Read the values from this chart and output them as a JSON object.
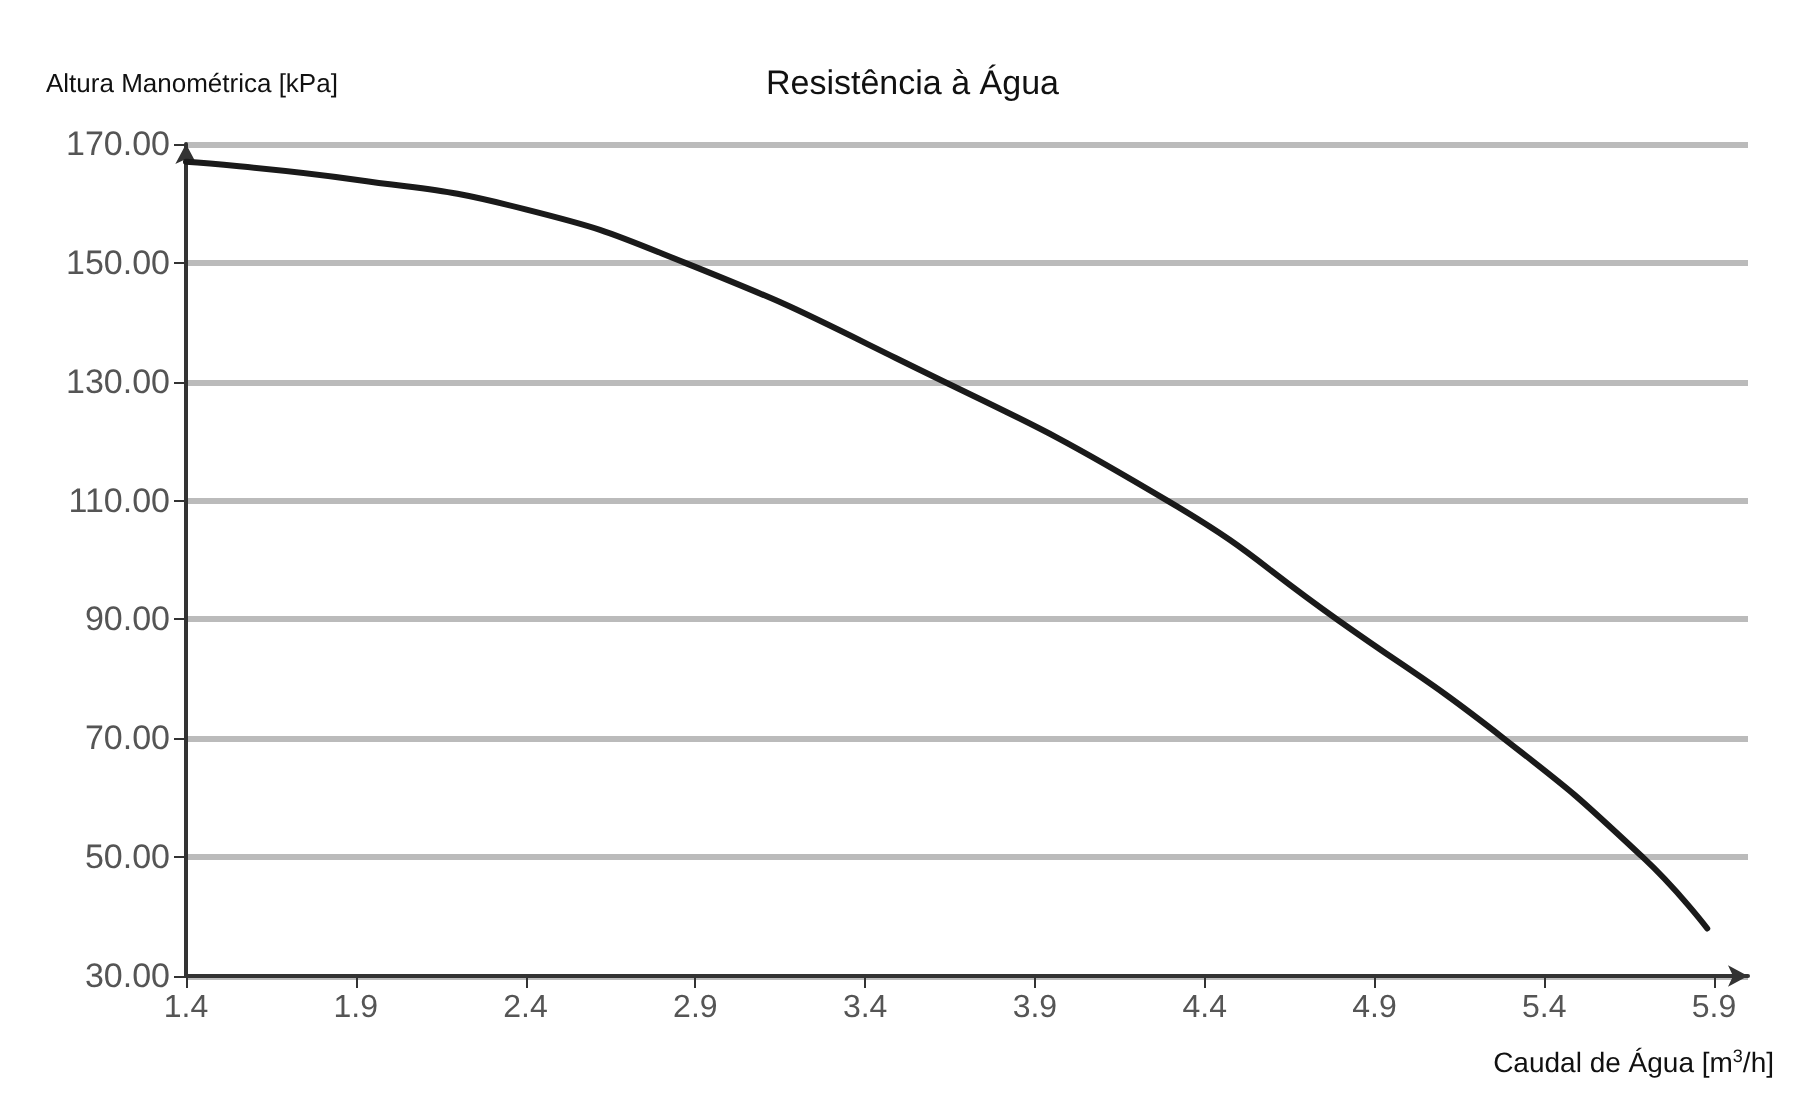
{
  "chart_data": {
    "type": "line",
    "title": "Resistência à Água",
    "xlabel": "Caudal de Água [m$^{3}$/h]",
    "ylabel": "Altura Manométrica [kPa]",
    "x": [
      1.4,
      1.9,
      2.4,
      2.87,
      3.49,
      4.29,
      4.79,
      5.28,
      5.69,
      5.88
    ],
    "series": [
      {
        "color": "#1a1a1a",
        "values": [
          167,
          164,
          159,
          150,
          134,
          110,
          90,
          70,
          50,
          38
        ]
      }
    ],
    "xlim": [
      1.4,
      6.0
    ],
    "xticks": [
      1.4,
      1.9,
      2.4,
      2.9,
      3.4,
      3.9,
      4.4,
      4.9,
      5.4,
      5.9
    ],
    "ylim": [
      30,
      170
    ],
    "yticks": [
      {
        "value": 30,
        "label": "30.00"
      },
      {
        "value": 50,
        "label": "50.00"
      },
      {
        "value": 70,
        "label": "70.00"
      },
      {
        "value": 90,
        "label": "90.00"
      },
      {
        "value": 110,
        "label": "110.00"
      },
      {
        "value": 130,
        "label": "130.00"
      },
      {
        "value": 150,
        "label": "150.00"
      },
      {
        "value": 170,
        "label": "170.00"
      }
    ],
    "grid": "y",
    "marker": "none",
    "line_style": "solid"
  }
}
